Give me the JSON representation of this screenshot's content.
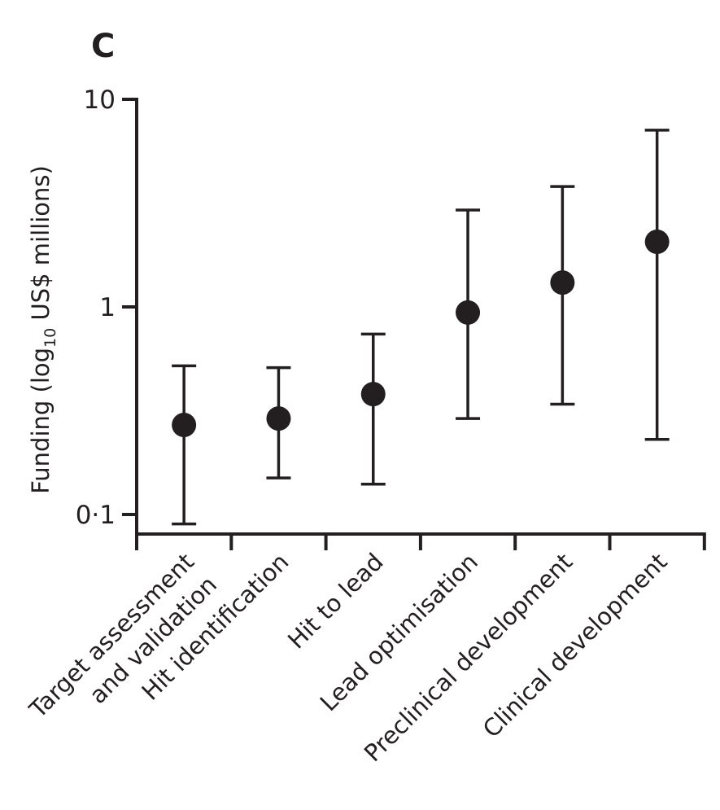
{
  "panel_label": "C",
  "chart_data": {
    "type": "scatter",
    "title": "",
    "xlabel": "",
    "ylabel": "Funding (log",
    "ylabel_sub": "10",
    "ylabel_rest": " US$ millions)",
    "yscale": "log",
    "ylim": [
      0.08,
      10
    ],
    "yticks": [
      10,
      1,
      0.1
    ],
    "ytick_labels": [
      "10",
      "1",
      "0·1"
    ],
    "grid": false,
    "categories": [
      [
        "Target assessment",
        "and validation"
      ],
      [
        "Hit identification"
      ],
      [
        "Hit to lead"
      ],
      [
        "Lead optimisation"
      ],
      [
        "Preclinical development"
      ],
      [
        "Clinical development"
      ]
    ],
    "values": [
      0.27,
      0.29,
      0.38,
      0.94,
      1.31,
      2.06
    ],
    "error_upper": [
      0.52,
      0.51,
      0.74,
      2.93,
      3.8,
      7.1
    ],
    "error_lower": [
      0.09,
      0.15,
      0.14,
      0.29,
      0.34,
      0.23
    ],
    "marker_color": "#231f20"
  }
}
